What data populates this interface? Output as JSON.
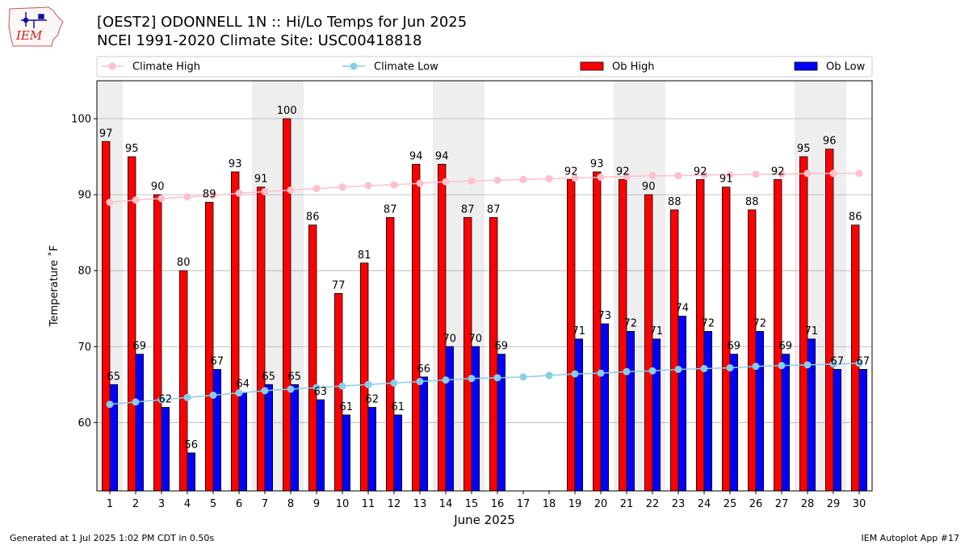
{
  "header": {
    "title_line1": "[OEST2] ODONNELL 1N :: Hi/Lo Temps for Jun 2025",
    "title_line2": "NCEI 1991-2020 Climate Site: USC00418818"
  },
  "logo": {
    "text": "IEM",
    "icon": "iem-iowa-logo"
  },
  "footer": {
    "generated": "Generated at 1 Jul 2025 1:02 PM CDT in 0.50s",
    "app": "IEM Autoplot App #17"
  },
  "colors": {
    "ob_high": "#ff0000",
    "ob_low": "#0000ff",
    "climate_high": "#ffc0cb",
    "climate_low": "#87ceeb",
    "weekend_shade": "#eeeeee",
    "grid": "#b0b0b0"
  },
  "chart_data": {
    "type": "bar",
    "xlabel": "June 2025",
    "ylabel": "Temperature ˚F",
    "ylim": [
      51,
      105
    ],
    "yticks": [
      60,
      70,
      80,
      90,
      100
    ],
    "grid": "horizontal",
    "legend_placement": "top",
    "x": [
      1,
      2,
      3,
      4,
      5,
      6,
      7,
      8,
      9,
      10,
      11,
      12,
      13,
      14,
      15,
      16,
      17,
      18,
      19,
      20,
      21,
      22,
      23,
      24,
      25,
      26,
      27,
      28,
      29,
      30
    ],
    "weekend_days": [
      1,
      7,
      8,
      14,
      15,
      21,
      22,
      28,
      29
    ],
    "series": [
      {
        "name": "Climate High",
        "kind": "line",
        "values": [
          89.0,
          89.3,
          89.5,
          89.7,
          89.9,
          90.2,
          90.4,
          90.6,
          90.8,
          91.0,
          91.2,
          91.3,
          91.5,
          91.7,
          91.8,
          91.9,
          92.0,
          92.1,
          92.2,
          92.3,
          92.4,
          92.5,
          92.5,
          92.6,
          92.6,
          92.7,
          92.7,
          92.8,
          92.8,
          92.8
        ]
      },
      {
        "name": "Climate Low",
        "kind": "line",
        "values": [
          62.4,
          62.7,
          63.0,
          63.3,
          63.6,
          63.9,
          64.2,
          64.4,
          64.6,
          64.8,
          65.0,
          65.2,
          65.4,
          65.6,
          65.8,
          65.9,
          66.0,
          66.2,
          66.4,
          66.5,
          66.7,
          66.8,
          67.0,
          67.1,
          67.2,
          67.4,
          67.5,
          67.6,
          67.7,
          67.8
        ]
      },
      {
        "name": "Ob High",
        "kind": "bar",
        "values": [
          97,
          95,
          90,
          80,
          89,
          93,
          91,
          100,
          86,
          77,
          81,
          87,
          94,
          94,
          87,
          87,
          null,
          null,
          92,
          93,
          92,
          90,
          88,
          92,
          91,
          88,
          92,
          95,
          96,
          86
        ]
      },
      {
        "name": "Ob Low",
        "kind": "bar",
        "values": [
          65,
          69,
          62,
          56,
          67,
          64,
          65,
          65,
          63,
          61,
          62,
          61,
          66,
          70,
          70,
          69,
          null,
          null,
          71,
          73,
          72,
          71,
          74,
          72,
          69,
          72,
          69,
          71,
          67,
          67
        ]
      }
    ]
  }
}
